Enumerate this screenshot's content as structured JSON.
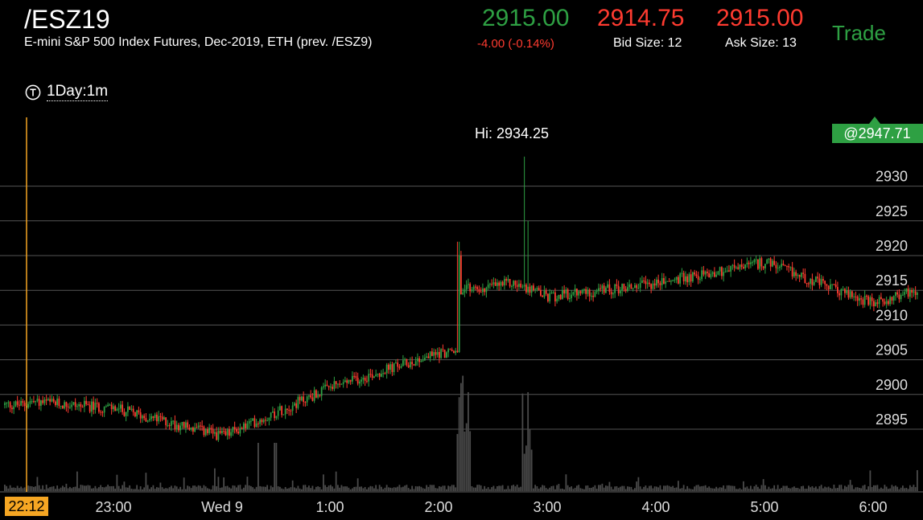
{
  "instrument": {
    "symbol": "/ESZ19",
    "description": "E-mini S&P 500 Index Futures, Dec-2019, ETH (prev. /ESZ9)"
  },
  "quote": {
    "last": "2915.00",
    "change": "-4.00 (-0.14%)",
    "bid": "2914.75",
    "bid_size": "Bid Size: 12",
    "ask": "2915.00",
    "ask_size": "Ask Size: 13"
  },
  "trade_button": "Trade",
  "timeframe": {
    "label": "1Day:1m",
    "icon": "timer-t-icon"
  },
  "colors": {
    "up": "#2ea043",
    "down": "#ff3b30",
    "grid": "#555555",
    "cursor": "#f5a623",
    "volume": "#4a4a4a"
  },
  "chart": {
    "high_label": "Hi: 2934.25",
    "cursor_price": "@2947.71",
    "cursor_time": "22:12",
    "price_ticks": [
      "2930",
      "2925",
      "2920",
      "2915",
      "2910",
      "2905",
      "2900",
      "2895"
    ],
    "time_ticks": [
      "23:00",
      "Wed 9",
      "1:00",
      "2:00",
      "3:00",
      "4:00",
      "5:00",
      "6:00"
    ]
  },
  "chart_data": {
    "type": "line",
    "x": [
      "22:12",
      "23:00",
      "Wed 9",
      "1:00",
      "2:00",
      "2:15",
      "2:45",
      "3:00",
      "4:00",
      "5:00",
      "6:00"
    ],
    "series": [
      {
        "values": [
          2899,
          2898,
          2894,
          2901,
          2906,
          2915,
          2916,
          2914,
          2916,
          2919,
          2913
        ]
      }
    ],
    "ylim": [
      2890,
      2935
    ],
    "high": 2934.25,
    "grid": true
  }
}
